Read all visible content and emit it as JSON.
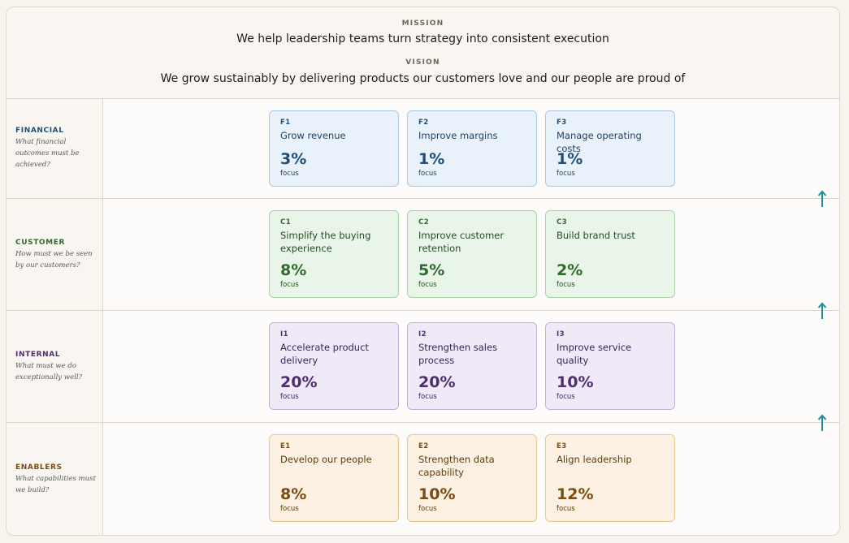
{
  "mission": {
    "label": "MISSION",
    "text": "We help leadership teams turn strategy into consistent execution"
  },
  "vision": {
    "label": "VISION",
    "text": "We grow sustainably by delivering products our customers love and our people are proud of"
  },
  "arrow_icon": "arrow-up-icon",
  "colors": {
    "arrow": "#1a8e96",
    "financial": "#1e4f7a",
    "customer": "#2f6b2f",
    "internal": "#4e2e6e",
    "enablers": "#7a4b12"
  },
  "perspectives": [
    {
      "title": "FINANCIAL",
      "question": "What financial outcomes must be achieved?",
      "objectives": [
        {
          "code": "F1",
          "title": "Grow revenue",
          "focus_value": "3%",
          "focus_label": "focus"
        },
        {
          "code": "F2",
          "title": "Improve margins",
          "focus_value": "1%",
          "focus_label": "focus"
        },
        {
          "code": "F3",
          "title": "Manage operating costs",
          "focus_value": "1%",
          "focus_label": "focus"
        }
      ]
    },
    {
      "title": "CUSTOMER",
      "question": "How must we be seen by our customers?",
      "objectives": [
        {
          "code": "C1",
          "title": "Simplify the buying experience",
          "focus_value": "8%",
          "focus_label": "focus"
        },
        {
          "code": "C2",
          "title": "Improve customer retention",
          "focus_value": "5%",
          "focus_label": "focus"
        },
        {
          "code": "C3",
          "title": "Build brand trust",
          "focus_value": "2%",
          "focus_label": "focus"
        }
      ]
    },
    {
      "title": "INTERNAL",
      "question": "What must we do exceptionally well?",
      "objectives": [
        {
          "code": "I1",
          "title": "Accelerate product delivery",
          "focus_value": "20%",
          "focus_label": "focus"
        },
        {
          "code": "I2",
          "title": "Strengthen sales process",
          "focus_value": "20%",
          "focus_label": "focus"
        },
        {
          "code": "I3",
          "title": "Improve service quality",
          "focus_value": "10%",
          "focus_label": "focus"
        }
      ]
    },
    {
      "title": "ENABLERS",
      "question": "What capabilities must we build?",
      "objectives": [
        {
          "code": "E1",
          "title": "Develop our people",
          "focus_value": "8%",
          "focus_label": "focus"
        },
        {
          "code": "E2",
          "title": "Strengthen data capability",
          "focus_value": "10%",
          "focus_label": "focus"
        },
        {
          "code": "E3",
          "title": "Align leadership",
          "focus_value": "12%",
          "focus_label": "focus"
        }
      ]
    }
  ]
}
